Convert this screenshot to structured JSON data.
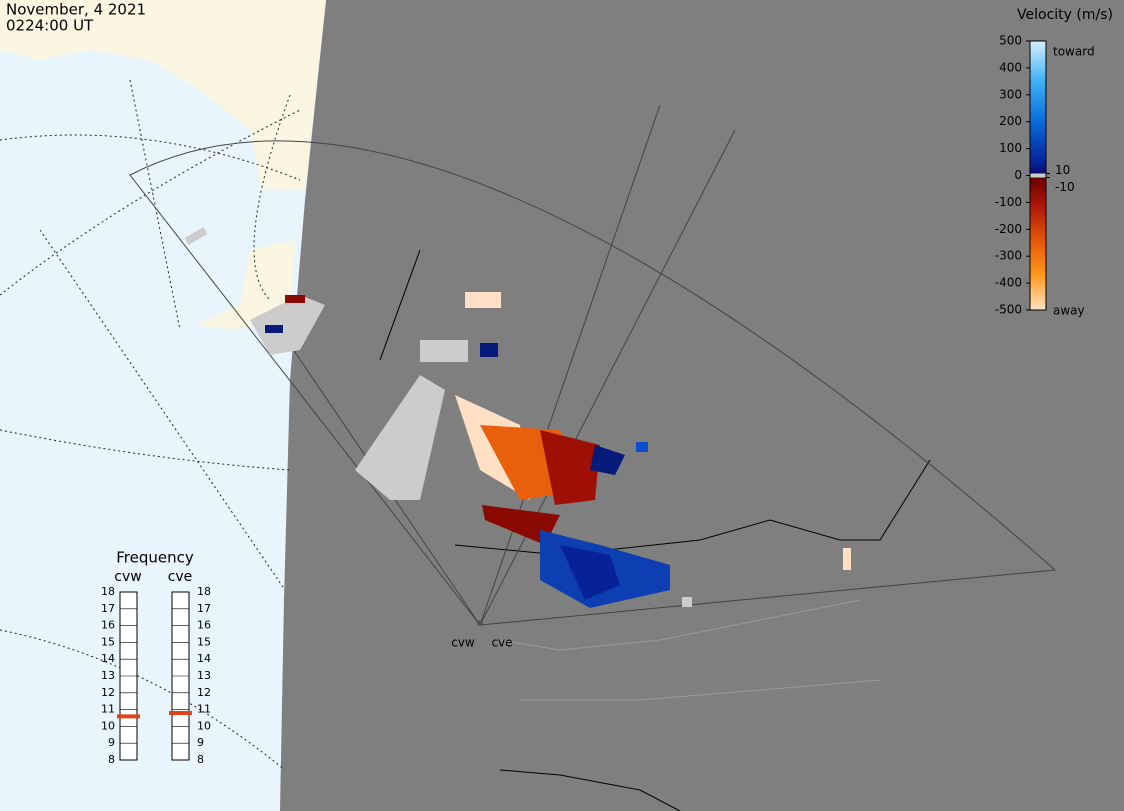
{
  "header": {
    "date": "November, 4 2021",
    "time": "0224:00 UT"
  },
  "velocity_scale": {
    "title": "Velocity (m/s)",
    "ticks": [
      500,
      400,
      300,
      200,
      100,
      0,
      -100,
      -200,
      -300,
      -400,
      -500
    ],
    "inner_ticks": [
      10,
      -10
    ],
    "toward": "toward",
    "away": "away"
  },
  "frequency": {
    "title": "Frequency",
    "ticks": [
      8,
      9,
      10,
      11,
      12,
      13,
      14,
      15,
      16,
      17,
      18
    ],
    "stations": [
      {
        "name": "cvw",
        "value": 10.6
      },
      {
        "name": "cve",
        "value": 10.8
      }
    ]
  },
  "radar_labels": [
    "cvw",
    "cve"
  ]
}
